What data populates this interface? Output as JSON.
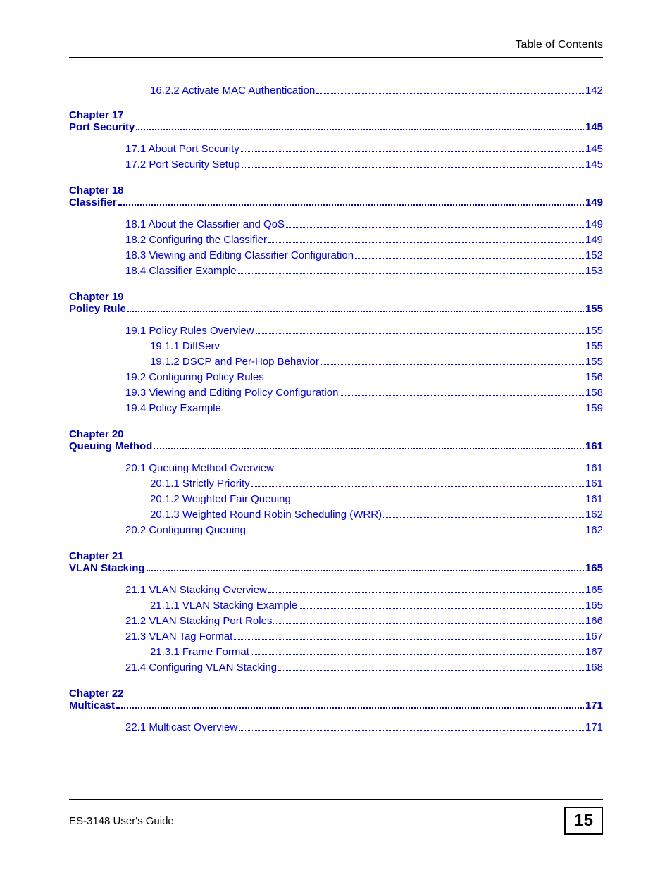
{
  "header": {
    "title": "Table of Contents"
  },
  "colors": {
    "link": "#0000cc",
    "chapter": "#0000aa",
    "text": "#000000"
  },
  "preEntries": [
    {
      "text": "16.2.2 Activate MAC Authentication",
      "page": "142",
      "indent": 2
    }
  ],
  "chapters": [
    {
      "label": "Chapter  17",
      "title": "Port Security",
      "page": "145",
      "entries": [
        {
          "text": "17.1 About Port Security",
          "page": "145",
          "indent": 1
        },
        {
          "text": "17.2 Port Security Setup",
          "page": "145",
          "indent": 1
        }
      ]
    },
    {
      "label": "Chapter  18",
      "title": "Classifier",
      "page": "149",
      "entries": [
        {
          "text": "18.1 About the Classifier and QoS",
          "page": "149",
          "indent": 1
        },
        {
          "text": "18.2 Configuring the Classifier",
          "page": "149",
          "indent": 1
        },
        {
          "text": "18.3 Viewing and Editing Classifier Configuration",
          "page": "152",
          "indent": 1
        },
        {
          "text": "18.4 Classifier Example",
          "page": "153",
          "indent": 1
        }
      ]
    },
    {
      "label": "Chapter  19",
      "title": "Policy Rule",
      "page": "155",
      "entries": [
        {
          "text": "19.1 Policy Rules Overview",
          "page": "155",
          "indent": 1
        },
        {
          "text": "19.1.1 DiffServ",
          "page": "155",
          "indent": 2
        },
        {
          "text": "19.1.2 DSCP and Per-Hop Behavior",
          "page": "155",
          "indent": 2
        },
        {
          "text": "19.2 Configuring Policy Rules",
          "page": "156",
          "indent": 1
        },
        {
          "text": "19.3 Viewing and Editing Policy Configuration",
          "page": "158",
          "indent": 1
        },
        {
          "text": "19.4 Policy Example",
          "page": "159",
          "indent": 1
        }
      ]
    },
    {
      "label": "Chapter  20",
      "title": "Queuing Method",
      "page": "161",
      "entries": [
        {
          "text": "20.1 Queuing Method Overview",
          "page": "161",
          "indent": 1
        },
        {
          "text": "20.1.1 Strictly Priority",
          "page": "161",
          "indent": 2
        },
        {
          "text": "20.1.2 Weighted Fair Queuing",
          "page": "161",
          "indent": 2
        },
        {
          "text": "20.1.3 Weighted Round Robin Scheduling (WRR)",
          "page": "162",
          "indent": 2
        },
        {
          "text": "20.2 Configuring Queuing",
          "page": "162",
          "indent": 1
        }
      ]
    },
    {
      "label": "Chapter  21",
      "title": "VLAN Stacking",
      "page": "165",
      "entries": [
        {
          "text": "21.1 VLAN Stacking Overview",
          "page": "165",
          "indent": 1
        },
        {
          "text": "21.1.1 VLAN Stacking Example",
          "page": "165",
          "indent": 2
        },
        {
          "text": "21.2 VLAN Stacking Port Roles",
          "page": "166",
          "indent": 1
        },
        {
          "text": "21.3 VLAN Tag Format",
          "page": "167",
          "indent": 1
        },
        {
          "text": "21.3.1 Frame Format",
          "page": "167",
          "indent": 2
        },
        {
          "text": "21.4 Configuring VLAN Stacking",
          "page": "168",
          "indent": 1
        }
      ]
    },
    {
      "label": "Chapter  22",
      "title": "Multicast",
      "page": "171",
      "entries": [
        {
          "text": "22.1 Multicast Overview",
          "page": "171",
          "indent": 1
        }
      ]
    }
  ],
  "footer": {
    "guideTitle": "ES-3148 User's Guide",
    "pageNumber": "15"
  }
}
